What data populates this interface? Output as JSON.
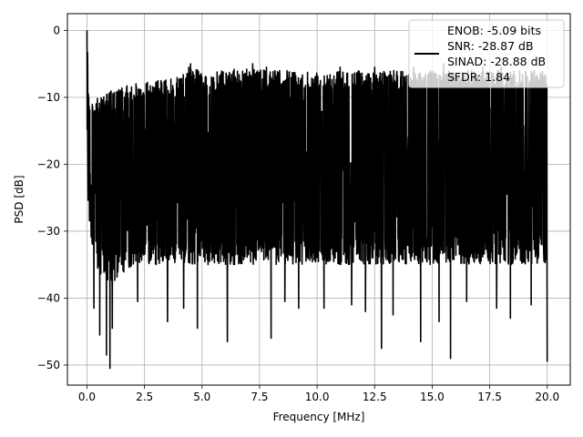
{
  "chart_data": {
    "type": "line",
    "xlabel": "Frequency [MHz]",
    "ylabel": "PSD [dB]",
    "xlim": [
      -0.85,
      21.0
    ],
    "ylim": [
      -53,
      2.5
    ],
    "x_ticks": [
      0.0,
      2.5,
      5.0,
      7.5,
      10.0,
      12.5,
      15.0,
      17.5,
      20.0
    ],
    "x_tick_labels": [
      "0.0",
      "2.5",
      "5.0",
      "7.5",
      "10.0",
      "12.5",
      "15.0",
      "17.5",
      "20.0"
    ],
    "y_ticks": [
      0,
      -10,
      -20,
      -30,
      -40,
      -50
    ],
    "y_tick_labels": [
      "0",
      "−10",
      "−20",
      "−30",
      "−40",
      "−50"
    ],
    "grid": true,
    "legend_position": "top-right",
    "legend": [
      "ENOB: -5.09 bits",
      "SNR: -28.87 dB",
      "SINAD: -28.88 dB",
      "SFDR: 1.84"
    ],
    "series": [
      {
        "color": "#000000",
        "envelope": {
          "x": [
            0.0,
            0.02,
            0.05,
            0.1,
            0.5,
            1.0,
            2.0,
            3.0,
            4.0,
            4.5,
            5.0,
            6.0,
            7.0,
            7.5,
            8.0,
            9.0,
            10.0,
            11.0,
            12.0,
            13.0,
            14.0,
            15.0,
            16.0,
            17.0,
            18.0,
            19.0,
            20.0
          ],
          "upper": [
            -24,
            0,
            -6,
            -11,
            -10,
            -9,
            -8,
            -7.5,
            -7,
            -5,
            -6.5,
            -6,
            -5.5,
            -5.5,
            -6,
            -6,
            -6,
            -6,
            -6,
            -6,
            -6,
            -6,
            -6,
            -6,
            -6,
            -6,
            -6
          ],
          "lower": [
            -24,
            -20,
            -26,
            -30,
            -36,
            -38,
            -35,
            -35,
            -35,
            -35,
            -35,
            -35,
            -35,
            -35,
            -35,
            -35,
            -35,
            -35,
            -35,
            -35,
            -35,
            -35,
            -35,
            -35,
            -35,
            -35,
            -35
          ]
        },
        "deep_dips": [
          [
            0.3,
            -41.5
          ],
          [
            0.55,
            -45.5
          ],
          [
            0.85,
            -48.5
          ],
          [
            1.0,
            -50.5
          ],
          [
            1.1,
            -44.5
          ],
          [
            2.2,
            -40.5
          ],
          [
            3.5,
            -43.5
          ],
          [
            4.2,
            -41.5
          ],
          [
            4.8,
            -44.5
          ],
          [
            6.1,
            -46.5
          ],
          [
            7.2,
            -42.5
          ],
          [
            8.0,
            -46.0
          ],
          [
            8.6,
            -40.5
          ],
          [
            9.2,
            -41.5
          ],
          [
            10.3,
            -41.5
          ],
          [
            11.0,
            -44.5
          ],
          [
            11.5,
            -41.0
          ],
          [
            12.1,
            -42.0
          ],
          [
            12.8,
            -47.5
          ],
          [
            13.3,
            -42.5
          ],
          [
            14.5,
            -46.5
          ],
          [
            15.3,
            -43.5
          ],
          [
            15.8,
            -49.0
          ],
          [
            16.5,
            -40.5
          ],
          [
            17.8,
            -41.5
          ],
          [
            18.4,
            -43.0
          ],
          [
            19.3,
            -41.0
          ],
          [
            20.0,
            -49.5
          ]
        ],
        "peaks": [
          [
            0.0,
            0.0
          ],
          [
            4.5,
            -5.0
          ],
          [
            7.2,
            -5.0
          ],
          [
            7.8,
            -5.5
          ],
          [
            11.0,
            -5.5
          ],
          [
            12.5,
            -5.5
          ],
          [
            14.2,
            -5.5
          ],
          [
            15.5,
            -5.0
          ],
          [
            17.2,
            -5.5
          ],
          [
            18.0,
            -5.5
          ]
        ]
      }
    ]
  }
}
